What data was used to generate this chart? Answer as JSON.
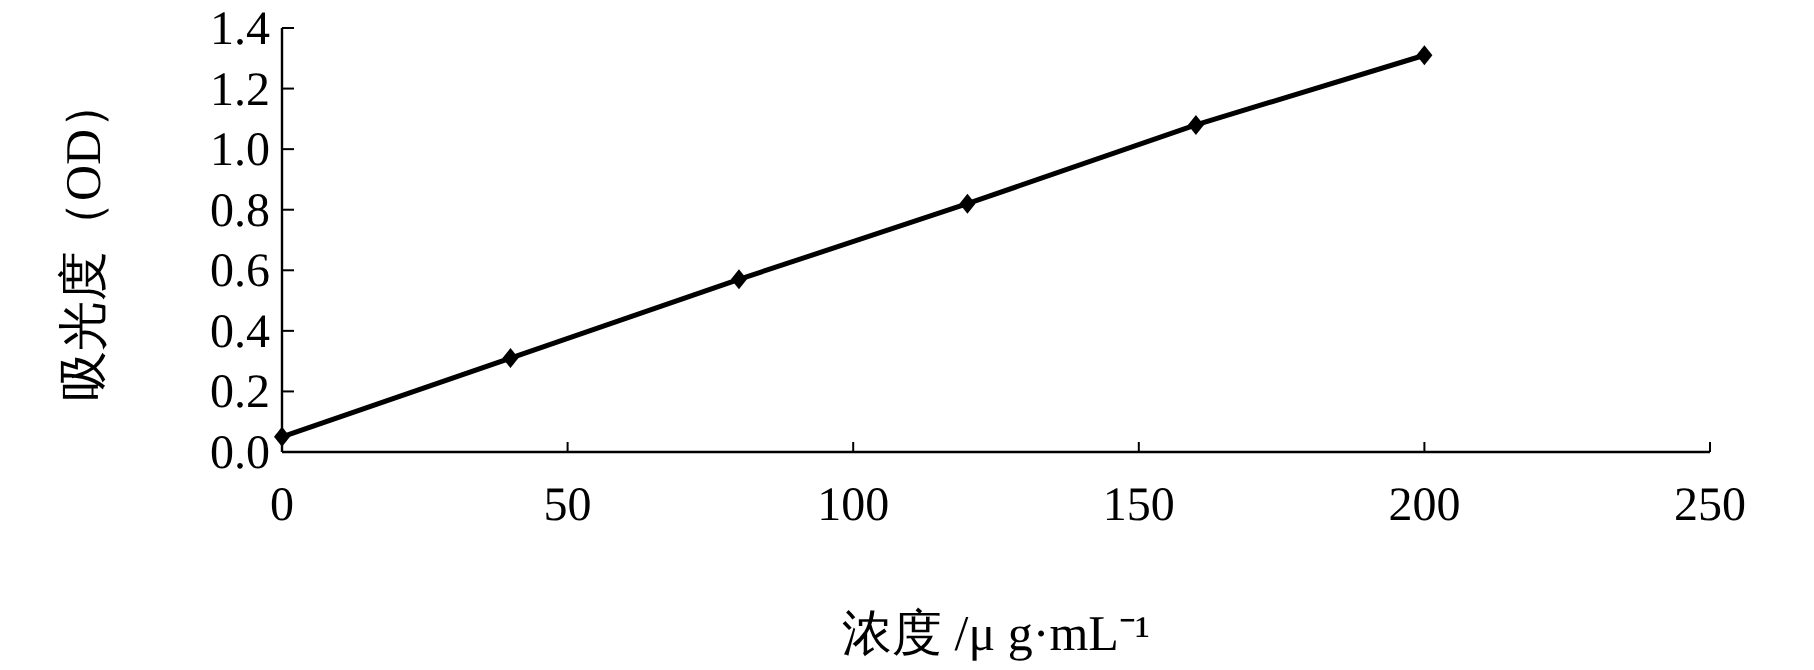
{
  "chart_data": {
    "type": "line",
    "xlabel": "浓度 /μ g·mL⁻¹",
    "ylabel": "吸光度（OD）",
    "x": [
      0,
      40,
      80,
      120,
      160,
      200
    ],
    "series": [
      {
        "color": "#000000",
        "values": [
          0.05,
          0.31,
          0.57,
          0.82,
          1.08,
          1.31
        ]
      }
    ],
    "xlim": [
      0,
      250
    ],
    "xticks": [
      0,
      50,
      100,
      150,
      200,
      250
    ],
    "ylim": [
      0,
      1.4
    ],
    "yticks": [
      {
        "value": 0,
        "label": "0.0"
      },
      {
        "value": 0.2,
        "label": "0.2"
      },
      {
        "value": 0.4,
        "label": "0.4"
      },
      {
        "value": 0.6,
        "label": "0.6"
      },
      {
        "value": 0.8,
        "label": "0.8"
      },
      {
        "value": 1.0,
        "label": "1.0"
      },
      {
        "value": 1.2,
        "label": "1.2"
      },
      {
        "value": 1.4,
        "label": "1.4"
      }
    ],
    "marker": "diamond",
    "line_style": "solid"
  }
}
